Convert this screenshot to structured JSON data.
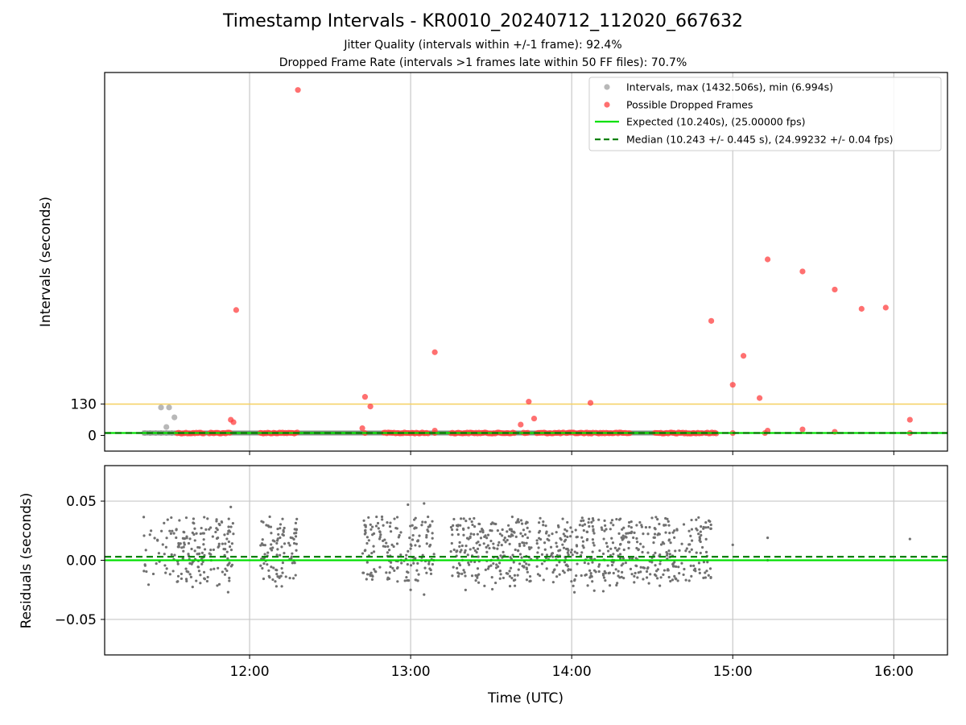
{
  "figure": {
    "title": "Timestamp Intervals - KR0010_20240712_112020_667632",
    "subtitle_1": "Jitter Quality (intervals within +/-1 frame): 92.4%",
    "subtitle_2": "Dropped Frame Rate (intervals >1 frames late within 50 FF files): 70.7%"
  },
  "colors": {
    "intervals": "#a0a0a0",
    "dropped": "#ff4040",
    "expected": "#00e000",
    "median": "#008000",
    "threshold": "#f5d060",
    "residuals": "#707070",
    "grid": "#c8c8c8"
  },
  "chart_data": [
    {
      "type": "scatter",
      "xlabel": "",
      "ylabel": "Intervals (seconds)",
      "xlim": [
        "11:06",
        "16:20"
      ],
      "ylim": [
        -65,
        1505
      ],
      "yticks": [
        {
          "value": 0,
          "label": "0"
        },
        {
          "value": 130,
          "label": "130"
        }
      ],
      "grid": "vertical at x ticks",
      "legend_position": "top-right",
      "legend": [
        "Intervals, max (1432.506s), min (6.994s)",
        "Possible Dropped Frames",
        "Expected (10.240s), (25.00000 fps)",
        "Median (10.243 +/- 0.445 s), (24.99232 +/- 0.04 fps)"
      ],
      "expected_value": 10.24,
      "median_value": 10.243,
      "threshold_line": 130,
      "series": [
        {
          "name": "Intervals, max (1432.506s), min (6.994s)",
          "points": [
            [
              "11:27",
              116
            ],
            [
              "11:30",
              116
            ],
            [
              "11:29",
              35
            ],
            [
              "11:32",
              75
            ],
            [
              "11:31",
              10
            ],
            [
              "11:21",
              10
            ],
            [
              "11:23",
              10
            ],
            [
              "11:25",
              10
            ],
            [
              "11:27",
              10
            ],
            [
              "11:29",
              10
            ]
          ],
          "band": {
            "from": "11:20",
            "to": "14:52",
            "value": 10
          }
        },
        {
          "name": "Possible Dropped Frames",
          "bands": [
            [
              "11:33",
              "11:43"
            ],
            [
              "11:45",
              "11:53"
            ],
            [
              "12:04",
              "12:18"
            ],
            [
              "12:50",
              "13:07"
            ],
            [
              "13:15",
              "13:39"
            ],
            [
              "13:42",
              "13:44"
            ],
            [
              "13:47",
              "13:57"
            ],
            [
              "13:58",
              "14:08"
            ],
            [
              "14:09",
              "14:22"
            ],
            [
              "14:31",
              "14:49"
            ],
            [
              "14:50",
              "14:54"
            ]
          ],
          "band_value": 10,
          "points": [
            [
              "12:18",
              1432.5
            ],
            [
              "11:55",
              520
            ],
            [
              "11:53",
              65
            ],
            [
              "11:54",
              55
            ],
            [
              "12:42",
              30
            ],
            [
              "12:43",
              10
            ],
            [
              "12:43",
              160
            ],
            [
              "12:45",
              120
            ],
            [
              "13:09",
              345
            ],
            [
              "13:09",
              20
            ],
            [
              "13:09",
              10
            ],
            [
              "13:41",
              45
            ],
            [
              "13:44",
              140
            ],
            [
              "13:46",
              70
            ],
            [
              "14:07",
              135
            ],
            [
              "14:52",
              475
            ],
            [
              "15:00",
              210
            ],
            [
              "15:04",
              330
            ],
            [
              "15:10",
              155
            ],
            [
              "15:13",
              730
            ],
            [
              "15:13",
              20
            ],
            [
              "15:12",
              10
            ],
            [
              "15:26",
              680
            ],
            [
              "15:26",
              25
            ],
            [
              "15:38",
              605
            ],
            [
              "15:38",
              15
            ],
            [
              "15:48",
              525
            ],
            [
              "15:57",
              530
            ],
            [
              "16:06",
              65
            ],
            [
              "16:06",
              10
            ],
            [
              "15:00",
              10
            ]
          ]
        }
      ]
    },
    {
      "type": "scatter",
      "xlabel": "Time (UTC)",
      "ylabel": "Residuals (seconds)",
      "xlim": [
        "11:06",
        "16:20"
      ],
      "ylim": [
        -0.08,
        0.08
      ],
      "xticks": [
        "12:00",
        "13:00",
        "14:00",
        "15:00",
        "16:00"
      ],
      "yticks": [
        {
          "value": 0.05,
          "label": "0.05"
        },
        {
          "value": 0.0,
          "label": "0.00"
        },
        {
          "value": -0.05,
          "label": "−0.05"
        }
      ],
      "grid": "both",
      "expected_residual": 0.0,
      "median_residual": 0.003,
      "clusters": [
        {
          "from": "11:20",
          "to": "11:33",
          "count": 40
        },
        {
          "from": "11:33",
          "to": "11:54",
          "count": 150
        },
        {
          "from": "12:04",
          "to": "12:18",
          "count": 95
        },
        {
          "from": "12:42",
          "to": "13:09",
          "count": 170
        },
        {
          "from": "13:15",
          "to": "13:45",
          "count": 230
        },
        {
          "from": "13:47",
          "to": "14:09",
          "count": 160
        },
        {
          "from": "14:10",
          "to": "14:52",
          "count": 280
        }
      ],
      "points": [
        [
          "11:53",
          0.045
        ],
        [
          "11:52",
          -0.027
        ],
        [
          "12:59",
          0.047
        ],
        [
          "13:05",
          0.048
        ],
        [
          "13:05",
          -0.029
        ],
        [
          "13:00",
          -0.025
        ],
        [
          "15:00",
          0.013
        ],
        [
          "15:13",
          0.019
        ],
        [
          "15:13",
          0.0
        ],
        [
          "16:06",
          0.018
        ],
        [
          "12:10",
          -0.022
        ],
        [
          "12:12",
          -0.022
        ]
      ]
    }
  ]
}
